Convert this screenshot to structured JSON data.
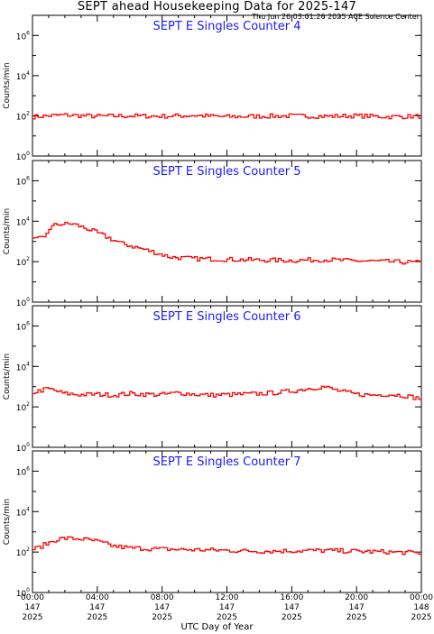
{
  "header": {
    "title": "SEPT ahead Housekeeping Data for 2025-147",
    "timestamp": "Thu Jun 26 03:01:26 2025 ACE Science Center",
    "xlabel": "UTC Day of Year"
  },
  "colors": {
    "series": "#ff0000",
    "panel_title": "#1a1aff",
    "axes": "#000000"
  },
  "chart_data": [
    {
      "type": "line",
      "title": "SEPT E Singles Counter 4",
      "ylabel": "Counts/min",
      "yscale": "log",
      "ylim": [
        1,
        10000000
      ],
      "xlim": [
        0,
        24
      ],
      "yticks": [
        {
          "label": "10",
          "exp": "0",
          "value": 1
        },
        {
          "label": "10",
          "exp": "2",
          "value": 100
        },
        {
          "label": "10",
          "exp": "4",
          "value": 10000
        },
        {
          "label": "10",
          "exp": "6",
          "value": 1000000
        }
      ],
      "x": [
        0,
        2,
        4,
        6,
        8,
        10,
        12,
        14,
        16,
        18,
        20,
        22,
        24
      ],
      "y": [
        90,
        110,
        95,
        100,
        95,
        105,
        90,
        95,
        100,
        95,
        100,
        90,
        95
      ]
    },
    {
      "type": "line",
      "title": "SEPT E Singles Counter 5",
      "ylabel": "Counts/min",
      "yscale": "log",
      "ylim": [
        1,
        10000000
      ],
      "xlim": [
        0,
        24
      ],
      "yticks": [
        {
          "label": "10",
          "exp": "0",
          "value": 1
        },
        {
          "label": "10",
          "exp": "2",
          "value": 100
        },
        {
          "label": "10",
          "exp": "4",
          "value": 10000
        },
        {
          "label": "10",
          "exp": "6",
          "value": 1000000
        }
      ],
      "x": [
        0,
        0.8,
        1.0,
        1.5,
        2.5,
        3.5,
        4.5,
        5.5,
        6.5,
        7.5,
        8.5,
        10,
        12,
        14,
        16,
        18,
        20,
        22,
        24
      ],
      "y": [
        1200,
        1500,
        4000,
        7000,
        7500,
        4000,
        1800,
        800,
        500,
        300,
        170,
        140,
        130,
        120,
        115,
        125,
        110,
        100,
        90
      ]
    },
    {
      "type": "line",
      "title": "SEPT E Singles Counter 6",
      "ylabel": "Counts/min",
      "yscale": "log",
      "ylim": [
        1,
        10000000
      ],
      "xlim": [
        0,
        24
      ],
      "yticks": [
        {
          "label": "10",
          "exp": "0",
          "value": 1
        },
        {
          "label": "10",
          "exp": "2",
          "value": 100
        },
        {
          "label": "10",
          "exp": "4",
          "value": 10000
        },
        {
          "label": "10",
          "exp": "6",
          "value": 1000000
        }
      ],
      "x": [
        0,
        1,
        2,
        3,
        4,
        5,
        6,
        7,
        8,
        9,
        10,
        11,
        12,
        13,
        14,
        15,
        16,
        17,
        18,
        19,
        20,
        21,
        22,
        23,
        24
      ],
      "y": [
        500,
        800,
        450,
        400,
        420,
        380,
        450,
        420,
        400,
        500,
        420,
        380,
        400,
        420,
        450,
        500,
        600,
        800,
        1000,
        600,
        420,
        380,
        420,
        360,
        250
      ]
    },
    {
      "type": "line",
      "title": "SEPT E Singles Counter 7",
      "ylabel": "Counts/min",
      "yscale": "log",
      "ylim": [
        1,
        10000000
      ],
      "xlim": [
        0,
        24
      ],
      "yticks": [
        {
          "label": "10",
          "exp": "0",
          "value": 1
        },
        {
          "label": "10",
          "exp": "2",
          "value": 100
        },
        {
          "label": "10",
          "exp": "4",
          "value": 10000
        },
        {
          "label": "10",
          "exp": "6",
          "value": 1000000
        }
      ],
      "x": [
        0,
        0.5,
        1,
        1.5,
        2,
        3,
        4,
        5,
        6,
        8,
        10,
        12,
        14,
        16,
        18,
        20,
        22,
        24
      ],
      "y": [
        130,
        180,
        280,
        420,
        480,
        450,
        340,
        200,
        160,
        140,
        130,
        120,
        110,
        115,
        120,
        110,
        100,
        90
      ]
    }
  ],
  "xaxis": {
    "ticks": [
      {
        "time": "00:00",
        "doy": "147",
        "year": "2025",
        "value": 0
      },
      {
        "time": "04:00",
        "doy": "147",
        "year": "2025",
        "value": 4
      },
      {
        "time": "08:00",
        "doy": "147",
        "year": "2025",
        "value": 8
      },
      {
        "time": "12:00",
        "doy": "147",
        "year": "2025",
        "value": 12
      },
      {
        "time": "16:00",
        "doy": "147",
        "year": "2025",
        "value": 16
      },
      {
        "time": "20:00",
        "doy": "147",
        "year": "2025",
        "value": 20
      },
      {
        "time": "00:00",
        "doy": "148",
        "year": "2025",
        "value": 24
      }
    ]
  }
}
